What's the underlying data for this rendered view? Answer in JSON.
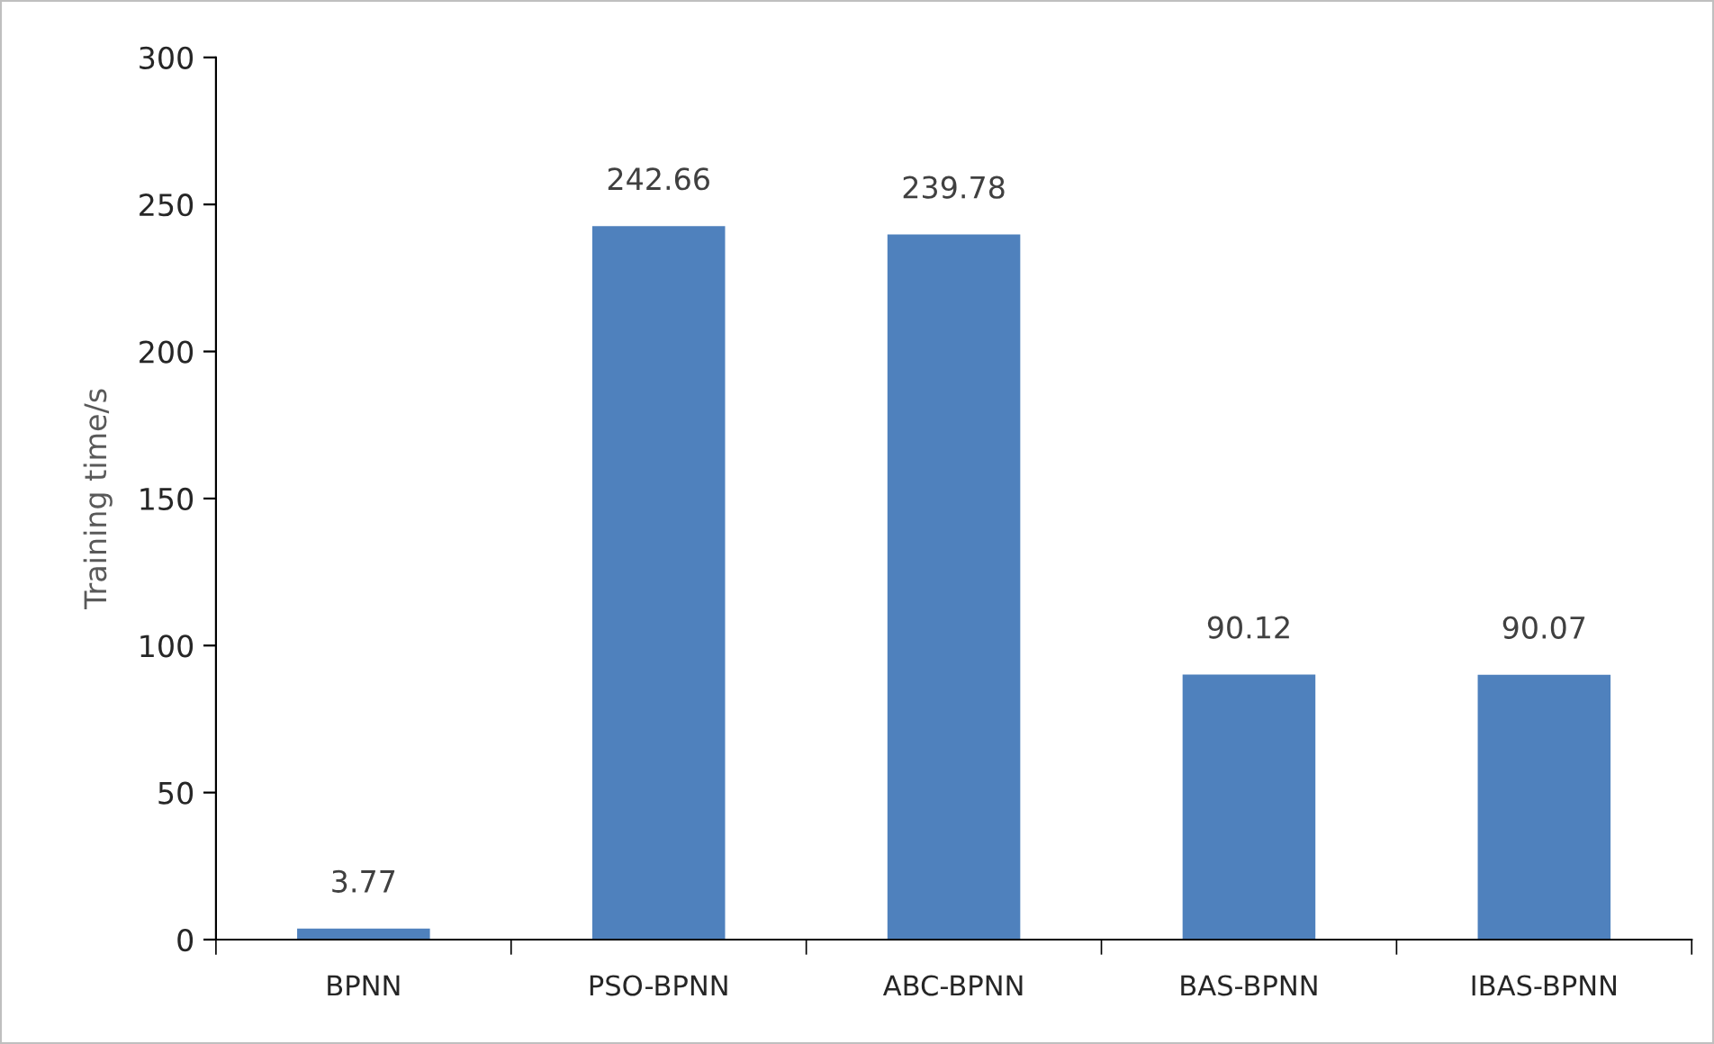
{
  "chart_data": {
    "type": "bar",
    "ylabel": "Training time/s",
    "categories": [
      "BPNN",
      "PSO-BPNN",
      "ABC-BPNN",
      "BAS-BPNN",
      "IBAS-BPNN"
    ],
    "values": [
      3.77,
      242.66,
      239.78,
      90.12,
      90.07
    ],
    "color": "#4f81bd",
    "ylim": [
      0,
      300
    ],
    "yticks": [
      0,
      50,
      100,
      150,
      200,
      250,
      300
    ],
    "data_labels": true,
    "grid": false,
    "legend": false
  }
}
